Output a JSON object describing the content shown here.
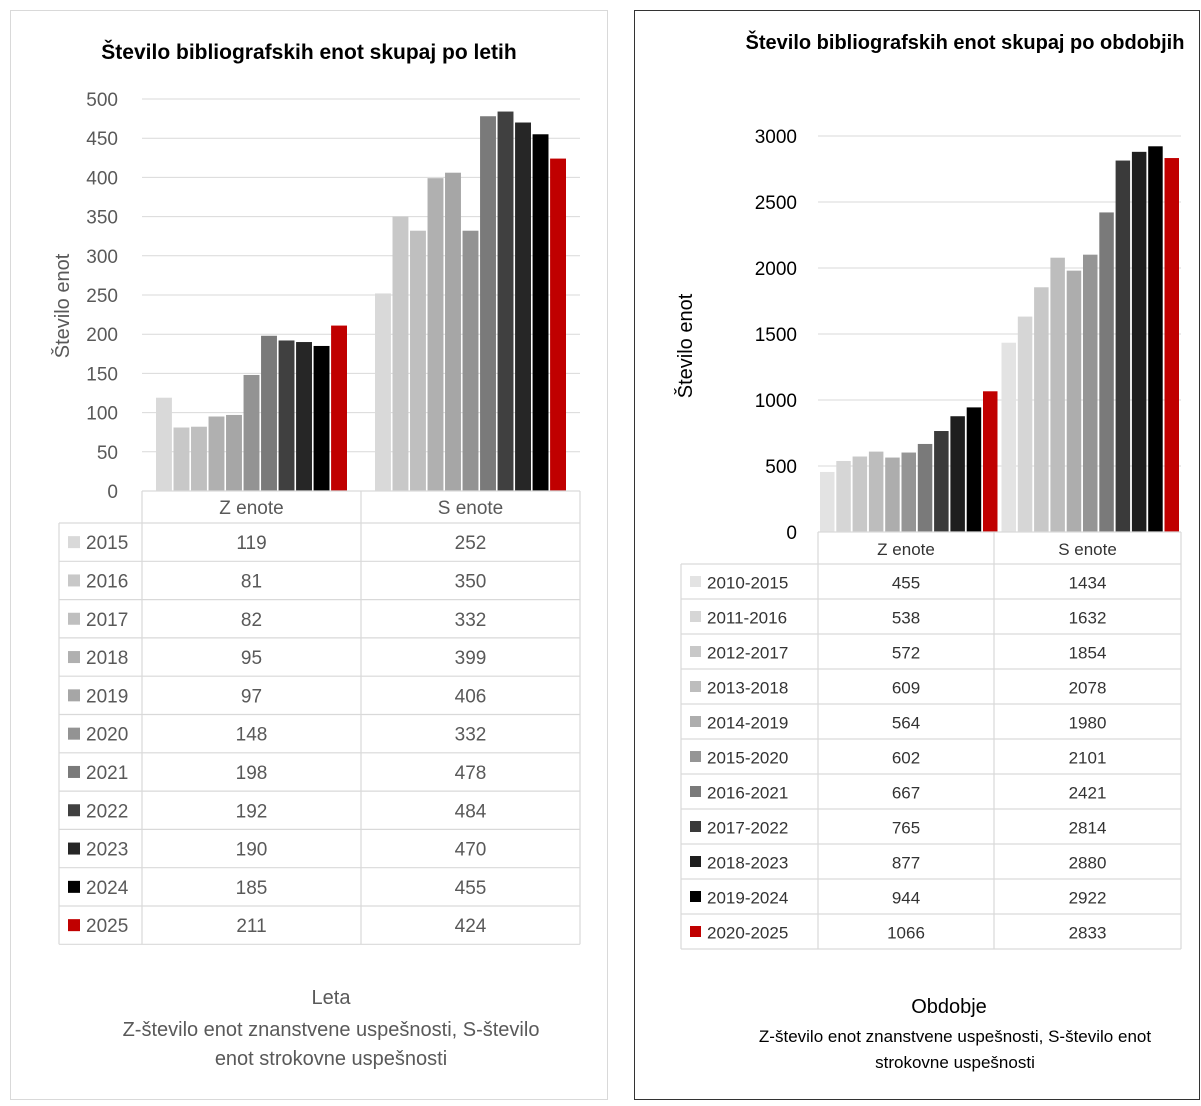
{
  "chart_data": [
    {
      "type": "bar",
      "title": "Število bibliografskih enot skupaj po letih",
      "ylabel": "Število enot",
      "xlabel": "Leta",
      "xlabel_note": "Z-število enot znanstvene uspešnosti, S-število enot strokovne uspešnosti",
      "ylim": [
        0,
        500
      ],
      "ytick_step": 50,
      "categories": [
        "Z enote",
        "S enote"
      ],
      "grid": true,
      "legend": "data-table",
      "series": [
        {
          "name": "2015",
          "values": [
            119,
            252
          ],
          "color": "#d9d9d9"
        },
        {
          "name": "2016",
          "values": [
            81,
            350
          ],
          "color": "#c8c8c8"
        },
        {
          "name": "2017",
          "values": [
            82,
            332
          ],
          "color": "#bfbfbf"
        },
        {
          "name": "2018",
          "values": [
            95,
            399
          ],
          "color": "#b0b0b0"
        },
        {
          "name": "2019",
          "values": [
            97,
            406
          ],
          "color": "#a6a6a6"
        },
        {
          "name": "2020",
          "values": [
            148,
            332
          ],
          "color": "#939393"
        },
        {
          "name": "2021",
          "values": [
            198,
            478
          ],
          "color": "#7a7a7a"
        },
        {
          "name": "2022",
          "values": [
            192,
            484
          ],
          "color": "#404040"
        },
        {
          "name": "2023",
          "values": [
            190,
            470
          ],
          "color": "#262626"
        },
        {
          "name": "2024",
          "values": [
            185,
            455
          ],
          "color": "#000000"
        },
        {
          "name": "2025",
          "values": [
            211,
            424
          ],
          "color": "#c00000"
        }
      ]
    },
    {
      "type": "bar",
      "title": "Število bibliografskih enot skupaj po obdobjih",
      "ylabel": "Število enot",
      "xlabel": "Obdobje",
      "xlabel_note": "Z-število enot znanstvene uspešnosti, S-število enot strokovne uspešnosti",
      "ylim": [
        0,
        3000
      ],
      "ytick_step": 500,
      "categories": [
        "Z enote",
        "S enote"
      ],
      "grid": true,
      "legend": "data-table",
      "series": [
        {
          "name": "2010-2015",
          "values": [
            455,
            1434
          ],
          "color": "#e3e3e3"
        },
        {
          "name": "2011-2016",
          "values": [
            538,
            1632
          ],
          "color": "#d6d6d6"
        },
        {
          "name": "2012-2017",
          "values": [
            572,
            1854
          ],
          "color": "#c8c8c8"
        },
        {
          "name": "2013-2018",
          "values": [
            609,
            2078
          ],
          "color": "#bdbdbd"
        },
        {
          "name": "2014-2019",
          "values": [
            564,
            1980
          ],
          "color": "#adadad"
        },
        {
          "name": "2015-2020",
          "values": [
            602,
            2101
          ],
          "color": "#959595"
        },
        {
          "name": "2016-2021",
          "values": [
            667,
            2421
          ],
          "color": "#7a7a7a"
        },
        {
          "name": "2017-2022",
          "values": [
            765,
            2814
          ],
          "color": "#3a3a3a"
        },
        {
          "name": "2018-2023",
          "values": [
            877,
            2880
          ],
          "color": "#1e1e1e"
        },
        {
          "name": "2019-2024",
          "values": [
            944,
            2922
          ],
          "color": "#000000"
        },
        {
          "name": "2020-2025",
          "values": [
            1066,
            2833
          ],
          "color": "#c00000"
        }
      ]
    }
  ]
}
